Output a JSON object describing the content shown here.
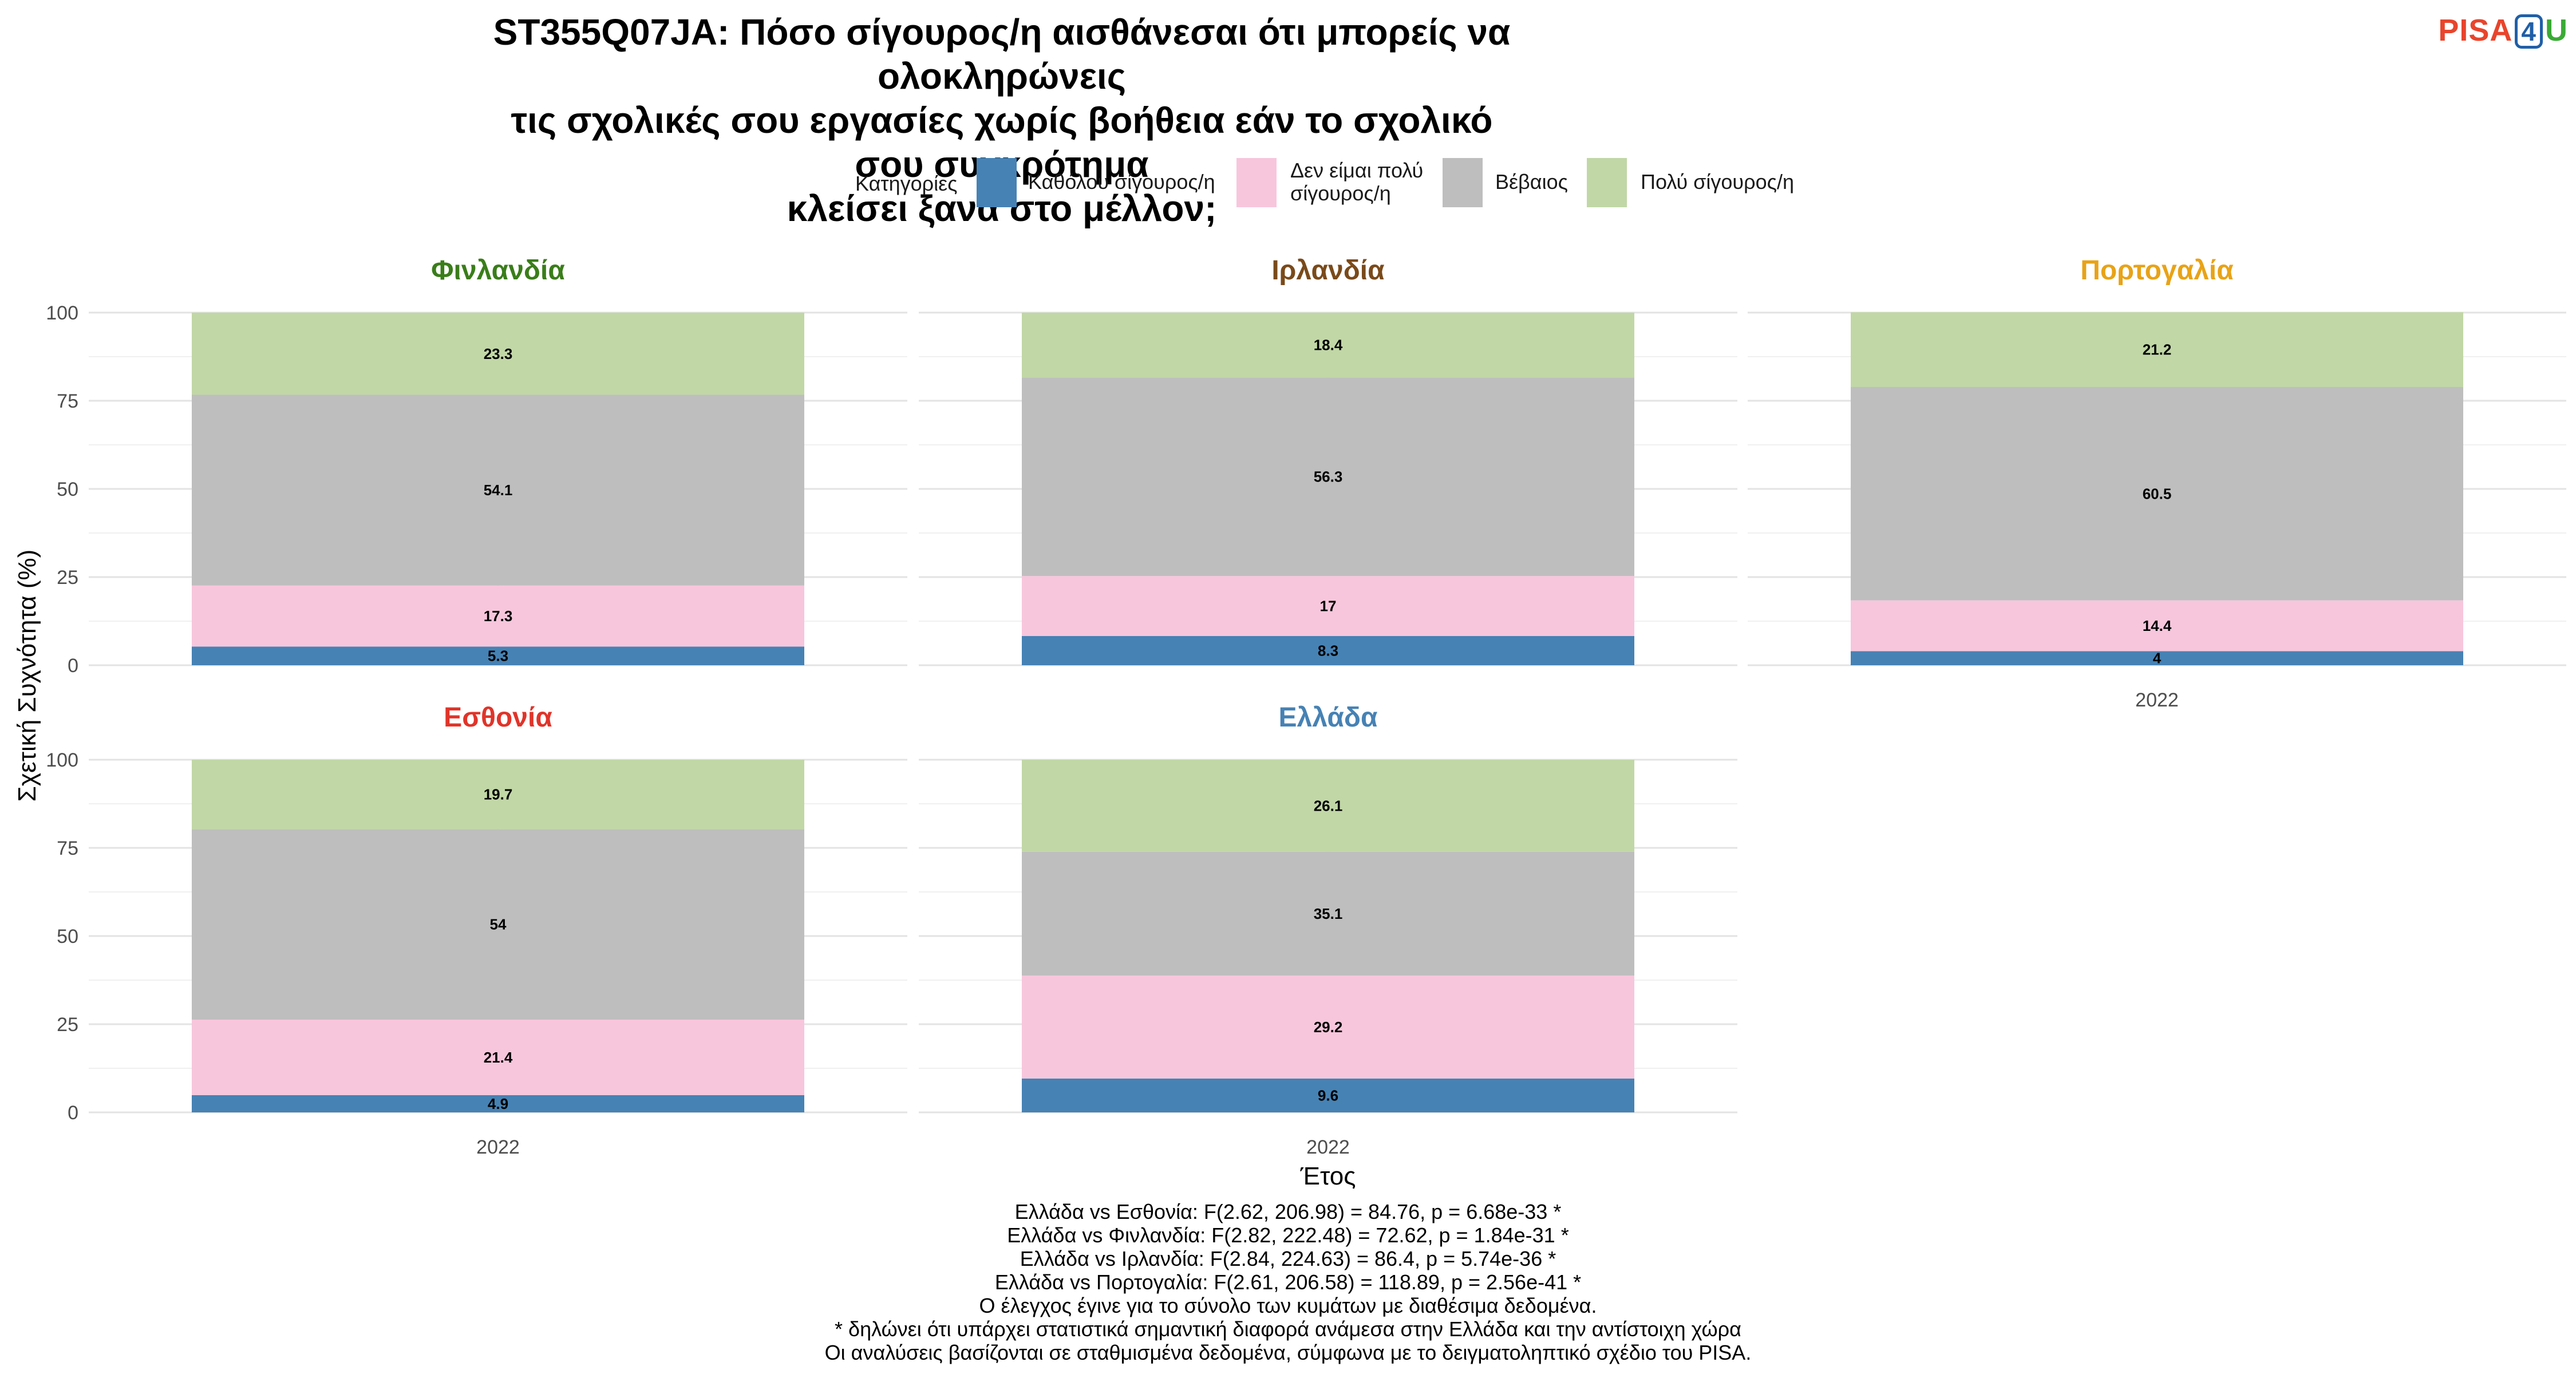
{
  "title_lines": [
    "ST355Q07JA: Πόσο σίγουρος/η αισθάνεσαι ότι μπορείς να ολοκληρώνεις",
    "τις σχολικές σου εργασίες χωρίς βοήθεια εάν το σχολικό σου συγκρότημα",
    "κλείσει ξανά στο μέλλον;"
  ],
  "logo": {
    "part1": "PISA",
    "part2": "4",
    "part3": "U"
  },
  "legend": {
    "title": "Κατηγορίες",
    "items": [
      {
        "label": "Καθόλου σίγουρος/η",
        "color": "#4682b4"
      },
      {
        "label_lines": [
          "Δεν είμαι πολύ",
          "σίγουρος/η"
        ],
        "color": "#f7c6dc"
      },
      {
        "label": "Βέβαιος",
        "color": "#bebebe"
      },
      {
        "label": "Πολύ σίγουρος/η",
        "color": "#c1d7a6"
      }
    ]
  },
  "axis": {
    "ylabel": "Σχετική Συχνότητα (%)",
    "xlabel": "Έτος"
  },
  "chart_data": {
    "type": "bar",
    "stacked": true,
    "facets": true,
    "x": [
      "2022"
    ],
    "ylim": [
      0,
      100
    ],
    "yticks": [
      0,
      25,
      50,
      75,
      100
    ],
    "grid": true,
    "legend_position": "top",
    "series_names": [
      "Καθόλου σίγουρος/η",
      "Δεν είμαι πολύ σίγουρος/η",
      "Βέβαιος",
      "Πολύ σίγουρος/η"
    ],
    "series_colors": [
      "#4682b4",
      "#f7c6dc",
      "#bebebe",
      "#c1d7a6"
    ],
    "panels": [
      {
        "title": "Φινλανδία",
        "title_color": "#3a7d1a",
        "values": [
          5.3,
          17.3,
          54.1,
          23.3
        ],
        "labels": [
          "5.3",
          "17.3",
          "54.1",
          "23.3"
        ]
      },
      {
        "title": "Ιρλανδία",
        "title_color": "#7a4a1a",
        "values": [
          8.3,
          17,
          56.3,
          18.4
        ],
        "labels": [
          "8.3",
          "17",
          "56.3",
          "18.4"
        ]
      },
      {
        "title": "Πορτογαλία",
        "title_color": "#e8a317",
        "values": [
          4,
          14.4,
          60.5,
          21.2
        ],
        "labels": [
          "4",
          "14.4",
          "60.5",
          "21.2"
        ]
      },
      {
        "title": "Εσθονία",
        "title_color": "#e0342a",
        "values": [
          4.9,
          21.4,
          54,
          19.7
        ],
        "labels": [
          "4.9",
          "21.4",
          "54",
          "19.7"
        ]
      },
      {
        "title": "Ελλάδα",
        "title_color": "#4682b4",
        "values": [
          9.6,
          29.2,
          35.1,
          26.1
        ],
        "labels": [
          "9.6",
          "29.2",
          "35.1",
          "26.1"
        ]
      }
    ]
  },
  "footnotes": [
    "Ελλάδα vs Εσθονία: F(2.62, 206.98) = 84.76, p = 6.68e-33 *",
    "Ελλάδα vs Φινλανδία: F(2.82, 222.48) = 72.62, p = 1.84e-31 *",
    "Ελλάδα vs Ιρλανδία: F(2.84, 224.63) = 86.4, p = 5.74e-36 *",
    "Ελλάδα vs Πορτογαλία: F(2.61, 206.58) = 118.89, p = 2.56e-41 *",
    "Ο έλεγχος έγινε για το σύνολο των κυμάτων με διαθέσιμα δεδομένα.",
    "* δηλώνει ότι υπάρχει στατιστικά σημαντική διαφορά ανάμεσα στην Ελλάδα και την αντίστοιχη χώρα",
    "Οι αναλύσεις βασίζονται σε σταθμισμένα δεδομένα, σύμφωνα με το δειγματοληπτικό σχέδιο του PISA."
  ]
}
